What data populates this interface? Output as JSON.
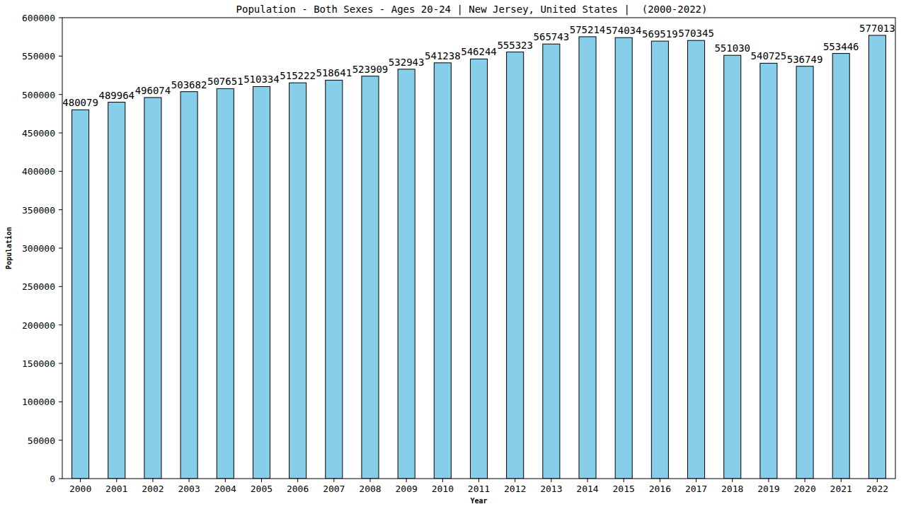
{
  "chart_data": {
    "type": "bar",
    "title": "Population - Both Sexes - Ages 20-24 | New Jersey, United States |  (2000-2022)",
    "x_label": "Year",
    "y_label": "Population",
    "categories": [
      "2000",
      "2001",
      "2002",
      "2003",
      "2004",
      "2005",
      "2006",
      "2007",
      "2008",
      "2009",
      "2010",
      "2011",
      "2012",
      "2013",
      "2014",
      "2015",
      "2016",
      "2017",
      "2018",
      "2019",
      "2020",
      "2021",
      "2022"
    ],
    "values": [
      480079,
      489964,
      496074,
      503682,
      507651,
      510334,
      515222,
      518641,
      523909,
      532943,
      541238,
      546244,
      555323,
      565743,
      575214,
      574034,
      569519,
      570345,
      551030,
      540725,
      536749,
      553446,
      577013
    ],
    "color": "#87ceeb",
    "ylim": [
      0,
      600000
    ],
    "yticks": [
      0,
      50000,
      100000,
      150000,
      200000,
      250000,
      300000,
      350000,
      400000,
      450000,
      500000,
      550000,
      600000
    ],
    "grid": false,
    "data_labels": true
  }
}
